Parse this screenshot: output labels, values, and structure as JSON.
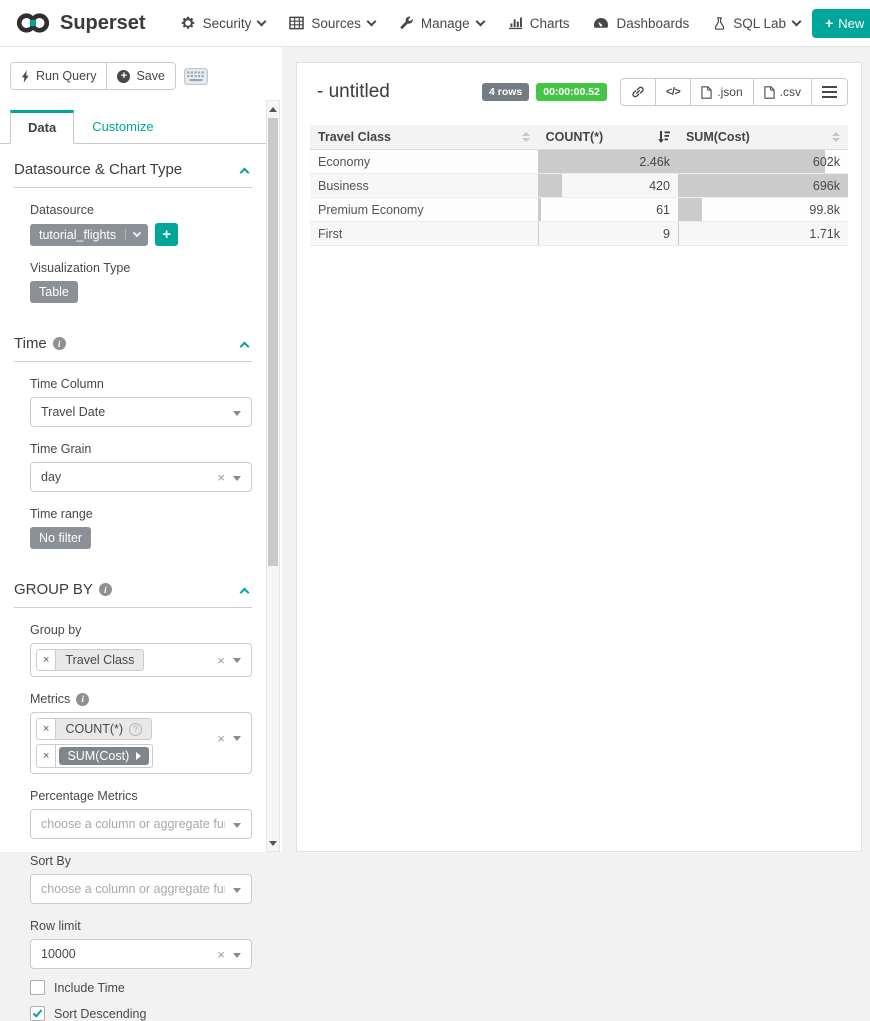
{
  "navbar": {
    "brand": "Superset",
    "items": [
      {
        "label": "Security",
        "caret": true
      },
      {
        "label": "Sources",
        "caret": true
      },
      {
        "label": "Manage",
        "caret": true
      },
      {
        "label": "Charts",
        "caret": false
      },
      {
        "label": "Dashboards",
        "caret": false
      },
      {
        "label": "SQL Lab",
        "caret": true
      }
    ],
    "new_button": "New"
  },
  "toolbar": {
    "run_query_label": "Run Query",
    "save_label": "Save"
  },
  "tabs": {
    "data": "Data",
    "customize": "Customize"
  },
  "controls": {
    "datasource_section_title": "Datasource & Chart Type",
    "datasource_label": "Datasource",
    "datasource_value": "tutorial_flights",
    "viz_type_label": "Visualization Type",
    "viz_type_value": "Table",
    "time_section_title": "Time",
    "time_column_label": "Time Column",
    "time_column_value": "Travel Date",
    "time_grain_label": "Time Grain",
    "time_grain_value": "day",
    "time_range_label": "Time range",
    "time_range_value": "No filter",
    "groupby_section_title": "GROUP BY",
    "group_by_label": "Group by",
    "group_by_token": "Travel Class",
    "metrics_label": "Metrics",
    "metric_tokens": [
      "COUNT(*)",
      "SUM(Cost)"
    ],
    "percentage_metrics_label": "Percentage Metrics",
    "sort_by_label": "Sort By",
    "select_placeholder": "choose a column or aggregate function",
    "row_limit_label": "Row limit",
    "row_limit_value": "10000",
    "include_time_label": "Include Time",
    "sort_descending_label": "Sort Descending"
  },
  "results": {
    "title": "- untitled",
    "rows_badge": "4 rows",
    "timer": "00:00:00.52",
    "json_label": ".json",
    "csv_label": ".csv",
    "table": {
      "columns": [
        "Travel Class",
        "COUNT(*)",
        "SUM(Cost)"
      ],
      "rows": [
        {
          "label": "Economy",
          "count": "2.46k",
          "count_bar": 100,
          "sum": "602k",
          "sum_bar": 86.5
        },
        {
          "label": "Business",
          "count": "420",
          "count_bar": 17.1,
          "sum": "696k",
          "sum_bar": 100
        },
        {
          "label": "Premium Economy",
          "count": "61",
          "count_bar": 2.5,
          "sum": "99.8k",
          "sum_bar": 14.3
        },
        {
          "label": "First",
          "count": "9",
          "count_bar": 0.4,
          "sum": "1.71k",
          "sum_bar": 0.25
        }
      ]
    }
  },
  "colors": {
    "accent": "#00a699",
    "timer_green": "#45c545",
    "badge_gray": "#727d85",
    "bar_gray": "#cbcbcb"
  }
}
